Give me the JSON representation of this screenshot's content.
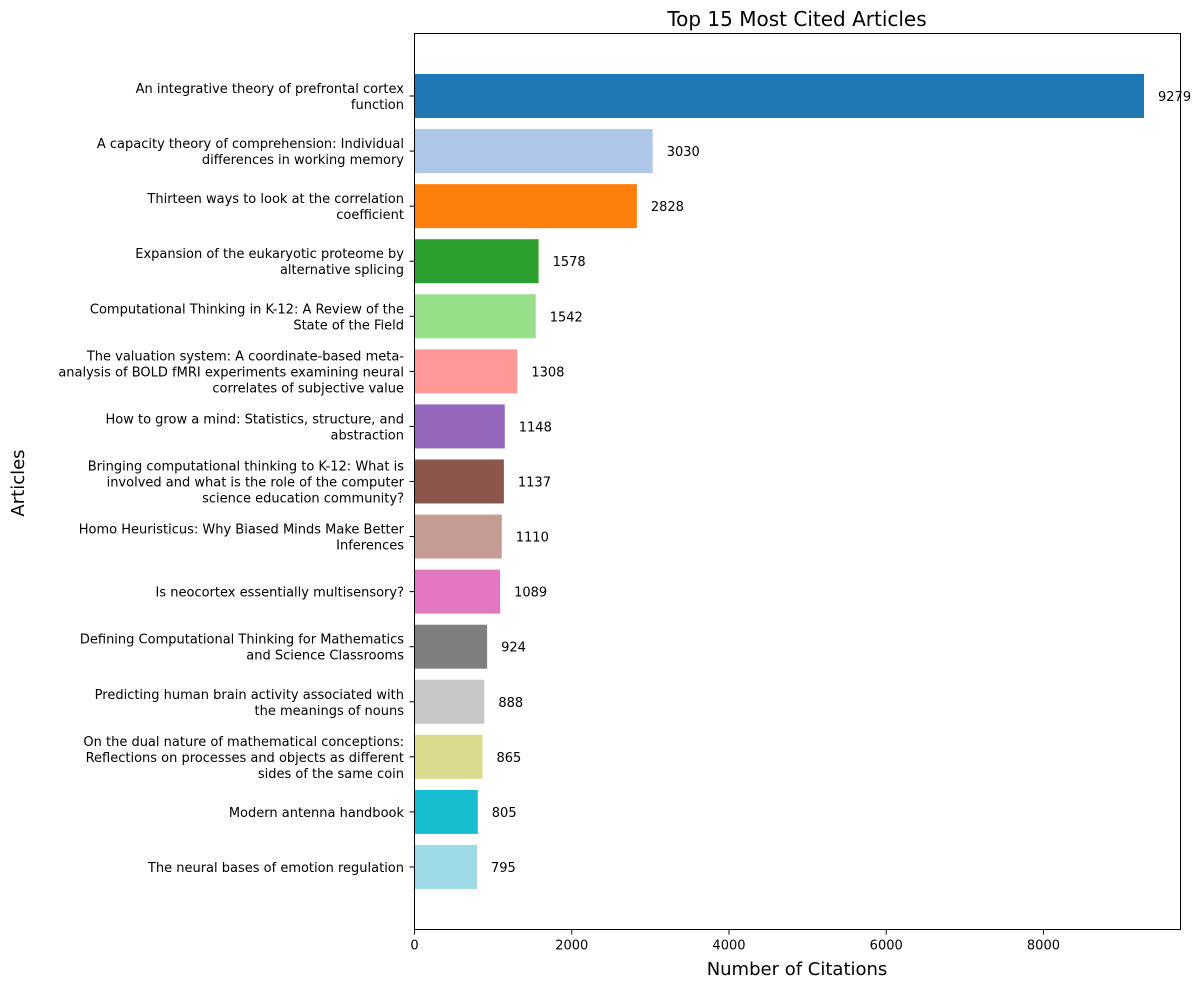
{
  "chart_data": {
    "type": "bar",
    "orientation": "horizontal",
    "title": "Top 15 Most Cited Articles",
    "xlabel": "Number of Citations",
    "ylabel": "Articles",
    "xlim": [
      0,
      9743
    ],
    "xticks": [
      0,
      2000,
      4000,
      6000,
      8000
    ],
    "xtick_labels": [
      "0",
      "2000",
      "4000",
      "6000",
      "8000"
    ],
    "grid": false,
    "categories": [
      [
        "An integrative theory of prefrontal cortex",
        "function"
      ],
      [
        "A capacity theory of comprehension: Individual",
        "differences in working memory"
      ],
      [
        "Thirteen ways to look at the correlation",
        "coefficient"
      ],
      [
        "Expansion of the eukaryotic proteome by",
        "alternative splicing"
      ],
      [
        "Computational Thinking in K-12: A Review of the",
        "State of the Field"
      ],
      [
        "The valuation system: A coordinate-based meta-",
        "analysis of BOLD fMRI experiments examining neural",
        "correlates of subjective value"
      ],
      [
        "How to grow a mind: Statistics, structure, and",
        "abstraction"
      ],
      [
        "Bringing computational thinking to K-12: What is",
        "involved and what is the role of the computer",
        "science education community?"
      ],
      [
        "Homo Heuristicus: Why Biased Minds Make Better",
        "Inferences"
      ],
      [
        "Is neocortex essentially multisensory?"
      ],
      [
        "Defining Computational Thinking for Mathematics",
        "and Science Classrooms"
      ],
      [
        "Predicting human brain activity associated with",
        "the meanings of nouns"
      ],
      [
        "On the dual nature of mathematical conceptions:",
        "Reflections on processes and objects as different",
        "sides of the same coin"
      ],
      [
        "Modern antenna handbook"
      ],
      [
        "The neural bases of emotion regulation"
      ]
    ],
    "values": [
      9279,
      3030,
      2828,
      1578,
      1542,
      1308,
      1148,
      1137,
      1110,
      1089,
      924,
      888,
      865,
      805,
      795
    ],
    "value_labels": [
      "9279",
      "3030",
      "2828",
      "1578",
      "1542",
      "1308",
      "1148",
      "1137",
      "1110",
      "1089",
      "924",
      "888",
      "865",
      "805",
      "795"
    ],
    "colors": [
      "#1f77b4",
      "#aec7e8",
      "#ff7f0e",
      "#2ca02c",
      "#98df8a",
      "#ff9896",
      "#9467bd",
      "#8c564b",
      "#c49c94",
      "#e377c2",
      "#7f7f7f",
      "#c7c7c7",
      "#dbdb8d",
      "#17becf",
      "#9edae5"
    ]
  }
}
